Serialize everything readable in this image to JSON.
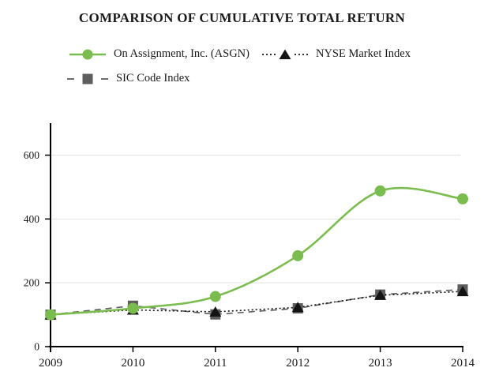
{
  "title": "COMPARISON OF CUMULATIVE TOTAL RETURN",
  "legend": [
    {
      "label": "On Assignment, Inc. (ASGN)"
    },
    {
      "label": "NYSE Market Index"
    },
    {
      "label": "SIC Code Index"
    }
  ],
  "colors": {
    "asgn_green": "#7abc4e",
    "nyse_black": "#141414",
    "sic_gray": "#5d5d5d",
    "gridline": "#e3e3e3",
    "axis": "#000000",
    "text": "#1a1a1a"
  },
  "chart_data": {
    "type": "line",
    "title": "COMPARISON OF CUMULATIVE TOTAL RETURN",
    "categories": [
      "2009",
      "2010",
      "2011",
      "2012",
      "2013",
      "2014"
    ],
    "series": [
      {
        "name": "On Assignment, Inc. (ASGN)",
        "color": "#7abc4e",
        "marker": "circle",
        "line": "solid",
        "line_shape": "smooth",
        "values": [
          100,
          120,
          157,
          285,
          488,
          463
        ]
      },
      {
        "name": "NYSE Market Index",
        "color": "#141414",
        "marker": "triangle",
        "line": "dotted",
        "line_shape": "straight",
        "values": [
          100,
          115,
          109,
          123,
          161,
          173
        ]
      },
      {
        "name": "SIC Code Index",
        "color": "#5d5d5d",
        "marker": "square",
        "line": "dashed",
        "line_shape": "straight",
        "values": [
          100,
          128,
          101,
          120,
          163,
          179
        ]
      }
    ],
    "xlabel": "",
    "ylabel": "",
    "ylim": [
      0,
      700
    ],
    "yticks": [
      0,
      200,
      400,
      600
    ],
    "grid": true,
    "legend_position": "top-left"
  }
}
